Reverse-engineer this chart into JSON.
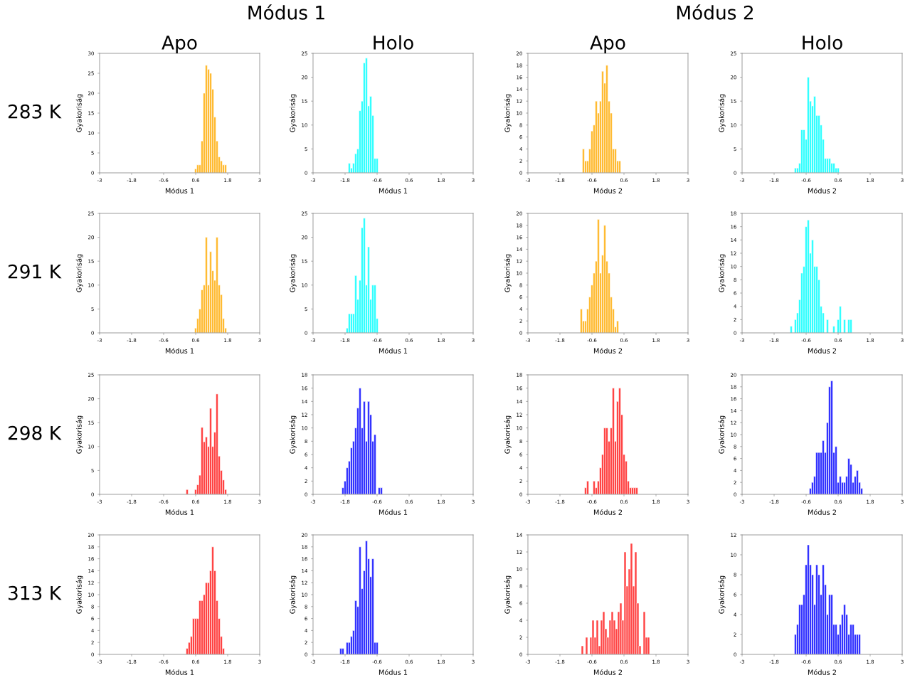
{
  "chart_data": [
    {
      "type": "histogram",
      "title": "Apo",
      "annotations": [
        "Módus 1",
        "283 K"
      ],
      "xlabel": "Módus 1",
      "ylabel": "Gyakoriság",
      "color": "#ffbb33",
      "xlim": [
        -3,
        3
      ],
      "xticks": [
        -3,
        -1.8,
        -0.6,
        0.6,
        1.8,
        3
      ],
      "ylim": [
        0,
        30
      ],
      "yticks": [
        0,
        5,
        10,
        15,
        20,
        25,
        30
      ],
      "bins": [
        0.56,
        0.64,
        0.72,
        0.8,
        0.88,
        0.96,
        1.04,
        1.12,
        1.2,
        1.28,
        1.36,
        1.44,
        1.52,
        1.6,
        1.68,
        1.76
      ],
      "values": [
        1,
        2,
        2,
        8,
        20,
        27,
        26,
        25,
        21,
        14,
        8,
        4,
        3,
        2,
        2
      ]
    },
    {
      "type": "histogram",
      "title": "Holo",
      "xlabel": "Módus 1",
      "ylabel": "Gyakoriság",
      "color": "#33ffff",
      "xlim": [
        -3,
        3
      ],
      "xticks": [
        -3,
        -1.8,
        -0.6,
        0.6,
        1.8,
        3
      ],
      "ylim": [
        0,
        25
      ],
      "yticks": [
        0,
        5,
        10,
        15,
        20,
        25
      ],
      "bins": [
        -1.68,
        -1.6,
        -1.52,
        -1.44,
        -1.36,
        -1.28,
        -1.2,
        -1.12,
        -1.04,
        -0.96,
        -0.88,
        -0.8,
        -0.72,
        -0.64,
        -0.56
      ],
      "values": [
        2,
        1,
        2,
        4,
        5,
        13,
        15,
        23,
        24,
        14,
        16,
        12,
        3,
        3
      ]
    },
    {
      "type": "histogram",
      "title": "Apo",
      "annotations": [
        "Módus 2"
      ],
      "xlabel": "Módus 2",
      "ylabel": "Gyakoriság",
      "color": "#ffbb33",
      "xlim": [
        -3,
        3
      ],
      "xticks": [
        -3,
        -1.8,
        -0.6,
        0.6,
        1.8,
        3
      ],
      "ylim": [
        0,
        20
      ],
      "yticks": [
        0,
        2,
        4,
        6,
        8,
        10,
        12,
        14,
        16,
        18,
        20
      ],
      "bins": [
        -0.96,
        -0.88,
        -0.8,
        -0.72,
        -0.64,
        -0.56,
        -0.48,
        -0.4,
        -0.32,
        -0.24,
        -0.16,
        -0.08,
        0,
        0.08,
        0.16,
        0.24,
        0.32,
        0.4,
        0.48
      ],
      "values": [
        4,
        2,
        2,
        4,
        7,
        8,
        12,
        10,
        12,
        17,
        15,
        18,
        12,
        10,
        4,
        4,
        2,
        2
      ]
    },
    {
      "type": "histogram",
      "title": "Holo",
      "xlabel": "Módus 2",
      "ylabel": "Gyakoriság",
      "color": "#33ffff",
      "xlim": [
        -3,
        3
      ],
      "xticks": [
        -3,
        -1.8,
        -0.6,
        0.6,
        1.8,
        3
      ],
      "ylim": [
        0,
        25
      ],
      "yticks": [
        0,
        5,
        10,
        15,
        20,
        25
      ],
      "bins": [
        -1.04,
        -0.96,
        -0.88,
        -0.8,
        -0.72,
        -0.64,
        -0.56,
        -0.48,
        -0.4,
        -0.32,
        -0.24,
        -0.16,
        -0.08,
        0,
        0.08,
        0.16,
        0.24,
        0.32,
        0.4,
        0.48,
        0.56,
        0.64
      ],
      "values": [
        1,
        1,
        2,
        9,
        9,
        7,
        20,
        15,
        14,
        16,
        12,
        12,
        10,
        7,
        3,
        3,
        3,
        2,
        2,
        1,
        1
      ]
    },
    {
      "type": "histogram",
      "annotations": [
        "291 K"
      ],
      "xlabel": "Módus 1",
      "ylabel": "Gyakoriság",
      "color": "#ffbb33",
      "xlim": [
        -3,
        3
      ],
      "xticks": [
        -3,
        -1.8,
        -0.6,
        0.6,
        1.8,
        3
      ],
      "ylim": [
        0,
        25
      ],
      "yticks": [
        0,
        5,
        10,
        15,
        20,
        25
      ],
      "bins": [
        0.56,
        0.64,
        0.72,
        0.8,
        0.88,
        0.96,
        1.04,
        1.12,
        1.2,
        1.28,
        1.36,
        1.44,
        1.52,
        1.6,
        1.68,
        1.76
      ],
      "values": [
        1,
        3,
        5,
        9,
        10,
        20,
        10,
        17,
        13,
        11,
        20,
        10,
        8,
        3,
        1
      ]
    },
    {
      "type": "histogram",
      "xlabel": "Módus 1",
      "ylabel": "Gyakoriság",
      "color": "#33ffff",
      "xlim": [
        -3,
        3
      ],
      "xticks": [
        -3,
        -1.8,
        -0.6,
        0.6,
        1.8,
        3
      ],
      "ylim": [
        0,
        25
      ],
      "yticks": [
        0,
        5,
        10,
        15,
        20,
        25
      ],
      "bins": [
        -1.76,
        -1.68,
        -1.6,
        -1.52,
        -1.44,
        -1.36,
        -1.28,
        -1.2,
        -1.12,
        -1.04,
        -0.96,
        -0.88,
        -0.8,
        -0.72,
        -0.64,
        -0.56
      ],
      "values": [
        1,
        4,
        4,
        4,
        12,
        7,
        11,
        22,
        24,
        10,
        18,
        7,
        10,
        10,
        3
      ]
    },
    {
      "type": "histogram",
      "xlabel": "Módus 2",
      "ylabel": "Gyakoriság",
      "color": "#ffbb33",
      "xlim": [
        -3,
        3
      ],
      "xticks": [
        -3,
        -1.8,
        -0.6,
        0.6,
        1.8,
        3
      ],
      "ylim": [
        0,
        20
      ],
      "yticks": [
        0,
        2,
        4,
        6,
        8,
        10,
        12,
        14,
        16,
        18,
        20
      ],
      "bins": [
        -1.04,
        -0.96,
        -0.88,
        -0.8,
        -0.72,
        -0.64,
        -0.56,
        -0.48,
        -0.4,
        -0.32,
        -0.24,
        -0.16,
        -0.08,
        0,
        0.08,
        0.16,
        0.24,
        0.32,
        0.4
      ],
      "values": [
        4,
        2,
        2,
        4,
        6,
        8,
        10,
        12,
        19,
        10,
        13,
        18,
        12,
        10,
        6,
        4,
        1,
        2
      ]
    },
    {
      "type": "histogram",
      "xlabel": "Módus 2",
      "ylabel": "Gyakoriság",
      "color": "#33ffff",
      "xlim": [
        -3,
        3
      ],
      "xticks": [
        -3,
        -1.8,
        -0.6,
        0.6,
        1.8,
        3
      ],
      "ylim": [
        0,
        18
      ],
      "yticks": [
        0,
        2,
        4,
        6,
        8,
        10,
        12,
        14,
        16,
        18
      ],
      "bins": [
        -1.2,
        -1.12,
        -1.04,
        -0.96,
        -0.88,
        -0.8,
        -0.72,
        -0.64,
        -0.56,
        -0.48,
        -0.4,
        -0.32,
        -0.24,
        -0.16,
        -0.08,
        0,
        0.08,
        0.16,
        0.24,
        0.32,
        0.4,
        0.48,
        0.56,
        0.64,
        0.72,
        0.8,
        0.88,
        0.96,
        1.04,
        1.12
      ],
      "values": [
        1,
        0,
        2,
        3,
        5,
        9,
        10,
        16,
        17,
        12,
        14,
        10,
        10,
        8,
        4,
        3,
        0,
        2,
        0,
        0,
        1,
        0,
        2,
        4,
        0,
        2,
        0,
        2,
        2
      ]
    },
    {
      "type": "histogram",
      "annotations": [
        "298 K"
      ],
      "xlabel": "Módus 1",
      "ylabel": "Gyakoriság",
      "color": "#ff4444",
      "xlim": [
        -3,
        3
      ],
      "xticks": [
        -3,
        -1.8,
        -0.6,
        0.6,
        1.8,
        3
      ],
      "ylim": [
        0,
        25
      ],
      "yticks": [
        0,
        5,
        10,
        15,
        20,
        25
      ],
      "bins": [
        0.24,
        0.32,
        0.4,
        0.48,
        0.56,
        0.64,
        0.72,
        0.8,
        0.88,
        0.96,
        1.04,
        1.12,
        1.2,
        1.28,
        1.36,
        1.44,
        1.52,
        1.6,
        1.68,
        1.76
      ],
      "values": [
        1,
        0,
        0,
        0,
        1,
        2,
        4,
        14,
        11,
        12,
        10,
        18,
        10,
        13,
        21,
        8,
        5,
        3,
        1
      ]
    },
    {
      "type": "histogram",
      "xlabel": "Módus 1",
      "ylabel": "Gyakoriság",
      "color": "#3333ff",
      "xlim": [
        -3,
        3
      ],
      "xticks": [
        -3,
        -1.8,
        -0.6,
        0.6,
        1.8,
        3
      ],
      "ylim": [
        0,
        18
      ],
      "yticks": [
        0,
        2,
        4,
        6,
        8,
        10,
        12,
        14,
        16,
        18
      ],
      "bins": [
        -1.92,
        -1.84,
        -1.76,
        -1.68,
        -1.6,
        -1.52,
        -1.44,
        -1.36,
        -1.28,
        -1.2,
        -1.12,
        -1.04,
        -0.96,
        -0.88,
        -0.8,
        -0.72,
        -0.64,
        -0.56,
        -0.48,
        -0.4
      ],
      "values": [
        1,
        2,
        4,
        5,
        7,
        8,
        10,
        13,
        16,
        10,
        14,
        8,
        14,
        12,
        8,
        9,
        0,
        1,
        1
      ]
    },
    {
      "type": "histogram",
      "xlabel": "Módus 2",
      "ylabel": "Gyakoriság",
      "color": "#ff4444",
      "xlim": [
        -3,
        3
      ],
      "xticks": [
        -3,
        -1.8,
        -0.6,
        0.6,
        1.8,
        3
      ],
      "ylim": [
        0,
        18
      ],
      "yticks": [
        0,
        2,
        4,
        6,
        8,
        10,
        12,
        14,
        16,
        18
      ],
      "bins": [
        -0.88,
        -0.8,
        -0.72,
        -0.64,
        -0.56,
        -0.48,
        -0.4,
        -0.32,
        -0.24,
        -0.16,
        -0.08,
        0,
        0.08,
        0.16,
        0.24,
        0.32,
        0.4,
        0.48,
        0.56,
        0.64,
        0.72,
        0.8,
        0.88,
        0.96,
        1.04,
        1.12
      ],
      "values": [
        1,
        2,
        0,
        0,
        2,
        1,
        2,
        4,
        6,
        10,
        10,
        8,
        10,
        16,
        8,
        14,
        16,
        12,
        6,
        5,
        2,
        1,
        1,
        1,
        1
      ]
    },
    {
      "type": "histogram",
      "xlabel": "Módus 2",
      "ylabel": "Gyakoriság",
      "color": "#3333ff",
      "xlim": [
        -3,
        3
      ],
      "xticks": [
        -3,
        -1.8,
        -0.6,
        0.6,
        1.8,
        3
      ],
      "ylim": [
        0,
        20
      ],
      "yticks": [
        0,
        2,
        4,
        6,
        8,
        10,
        12,
        14,
        16,
        18,
        20
      ],
      "bins": [
        -0.48,
        -0.4,
        -0.32,
        -0.24,
        -0.16,
        -0.08,
        0,
        0.08,
        0.16,
        0.24,
        0.32,
        0.4,
        0.48,
        0.56,
        0.64,
        0.72,
        0.8,
        0.88,
        0.96,
        1.04,
        1.12,
        1.2,
        1.28,
        1.36,
        1.44,
        1.52
      ],
      "values": [
        1,
        2,
        3,
        7,
        7,
        7,
        9,
        7,
        12,
        18,
        19,
        7,
        8,
        2,
        3,
        2,
        2,
        3,
        6,
        5,
        2,
        3,
        4,
        2,
        1
      ]
    },
    {
      "type": "histogram",
      "annotations": [
        "313 K"
      ],
      "xlabel": "Módus 1",
      "ylabel": "Gyakoriság",
      "color": "#ff4444",
      "xlim": [
        -3,
        3
      ],
      "xticks": [
        -3,
        -1.8,
        -0.6,
        0.6,
        1.8,
        3
      ],
      "ylim": [
        0,
        20
      ],
      "yticks": [
        0,
        2,
        4,
        6,
        8,
        10,
        12,
        14,
        16,
        18,
        20
      ],
      "bins": [
        0.24,
        0.32,
        0.4,
        0.48,
        0.56,
        0.64,
        0.72,
        0.8,
        0.88,
        0.96,
        1.04,
        1.12,
        1.2,
        1.28,
        1.36,
        1.44,
        1.52,
        1.6,
        1.68
      ],
      "values": [
        1,
        2,
        3,
        6,
        6,
        6,
        9,
        9,
        10,
        12,
        12,
        14,
        18,
        14,
        9,
        6,
        3,
        1
      ]
    },
    {
      "type": "histogram",
      "xlabel": "Módus 1",
      "ylabel": "Gyakoriság",
      "color": "#3333ff",
      "xlim": [
        -3,
        3
      ],
      "xticks": [
        -3,
        -1.8,
        -0.6,
        0.6,
        1.8,
        3
      ],
      "ylim": [
        0,
        20
      ],
      "yticks": [
        0,
        2,
        4,
        6,
        8,
        10,
        12,
        14,
        16,
        18,
        20
      ],
      "bins": [
        -2,
        -1.92,
        -1.84,
        -1.76,
        -1.68,
        -1.6,
        -1.52,
        -1.44,
        -1.36,
        -1.28,
        -1.2,
        -1.12,
        -1.04,
        -0.96,
        -0.88,
        -0.8,
        -0.72,
        -0.64,
        -0.56
      ],
      "values": [
        1,
        1,
        0,
        2,
        2,
        3,
        4,
        9,
        8,
        18,
        11,
        14,
        19,
        16,
        13,
        16,
        2,
        2
      ]
    },
    {
      "type": "histogram",
      "xlabel": "Módus 2",
      "ylabel": "Gyakoriság",
      "color": "#ff4444",
      "xlim": [
        -3,
        3
      ],
      "xticks": [
        -3,
        -1.8,
        -0.6,
        0.6,
        1.8,
        3
      ],
      "ylim": [
        0,
        14
      ],
      "yticks": [
        0,
        2,
        4,
        6,
        8,
        10,
        12,
        14
      ],
      "bins": [
        -1,
        -0.92,
        -0.84,
        -0.76,
        -0.68,
        -0.6,
        -0.52,
        -0.44,
        -0.36,
        -0.28,
        -0.2,
        -0.12,
        -0.04,
        0.04,
        0.12,
        0.2,
        0.28,
        0.36,
        0.44,
        0.52,
        0.6,
        0.68,
        0.76,
        0.84,
        0.92,
        1,
        1.08,
        1.16,
        1.24,
        1.32,
        1.4,
        1.48,
        1.56
      ],
      "values": [
        1,
        0,
        2,
        0,
        2,
        4,
        2,
        4,
        1,
        4,
        5,
        3,
        2,
        4,
        5,
        4,
        3,
        5,
        6,
        4,
        12,
        8,
        10,
        13,
        8,
        12,
        6,
        1,
        0,
        5,
        2,
        2
      ]
    },
    {
      "type": "histogram",
      "xlabel": "Módus 2",
      "ylabel": "Gyakoriság",
      "color": "#3333ff",
      "xlim": [
        -3,
        3
      ],
      "xticks": [
        -3,
        -1.8,
        -0.6,
        0.6,
        1.8,
        3
      ],
      "ylim": [
        0,
        12
      ],
      "yticks": [
        0,
        2,
        4,
        6,
        8,
        10,
        12
      ],
      "bins": [
        -1.04,
        -0.96,
        -0.88,
        -0.8,
        -0.72,
        -0.64,
        -0.56,
        -0.48,
        -0.4,
        -0.32,
        -0.24,
        -0.16,
        -0.08,
        0,
        0.08,
        0.16,
        0.24,
        0.32,
        0.4,
        0.48,
        0.56,
        0.64,
        0.72,
        0.8,
        0.88,
        0.96,
        1.04,
        1.12,
        1.2,
        1.28,
        1.36,
        1.44
      ],
      "values": [
        2,
        3,
        5,
        5,
        6,
        9,
        11,
        9,
        8,
        5,
        9,
        8,
        6,
        9,
        7,
        4,
        6,
        6,
        3,
        3,
        2,
        3,
        4,
        5,
        4,
        2,
        3,
        3,
        2,
        2,
        2
      ]
    }
  ]
}
